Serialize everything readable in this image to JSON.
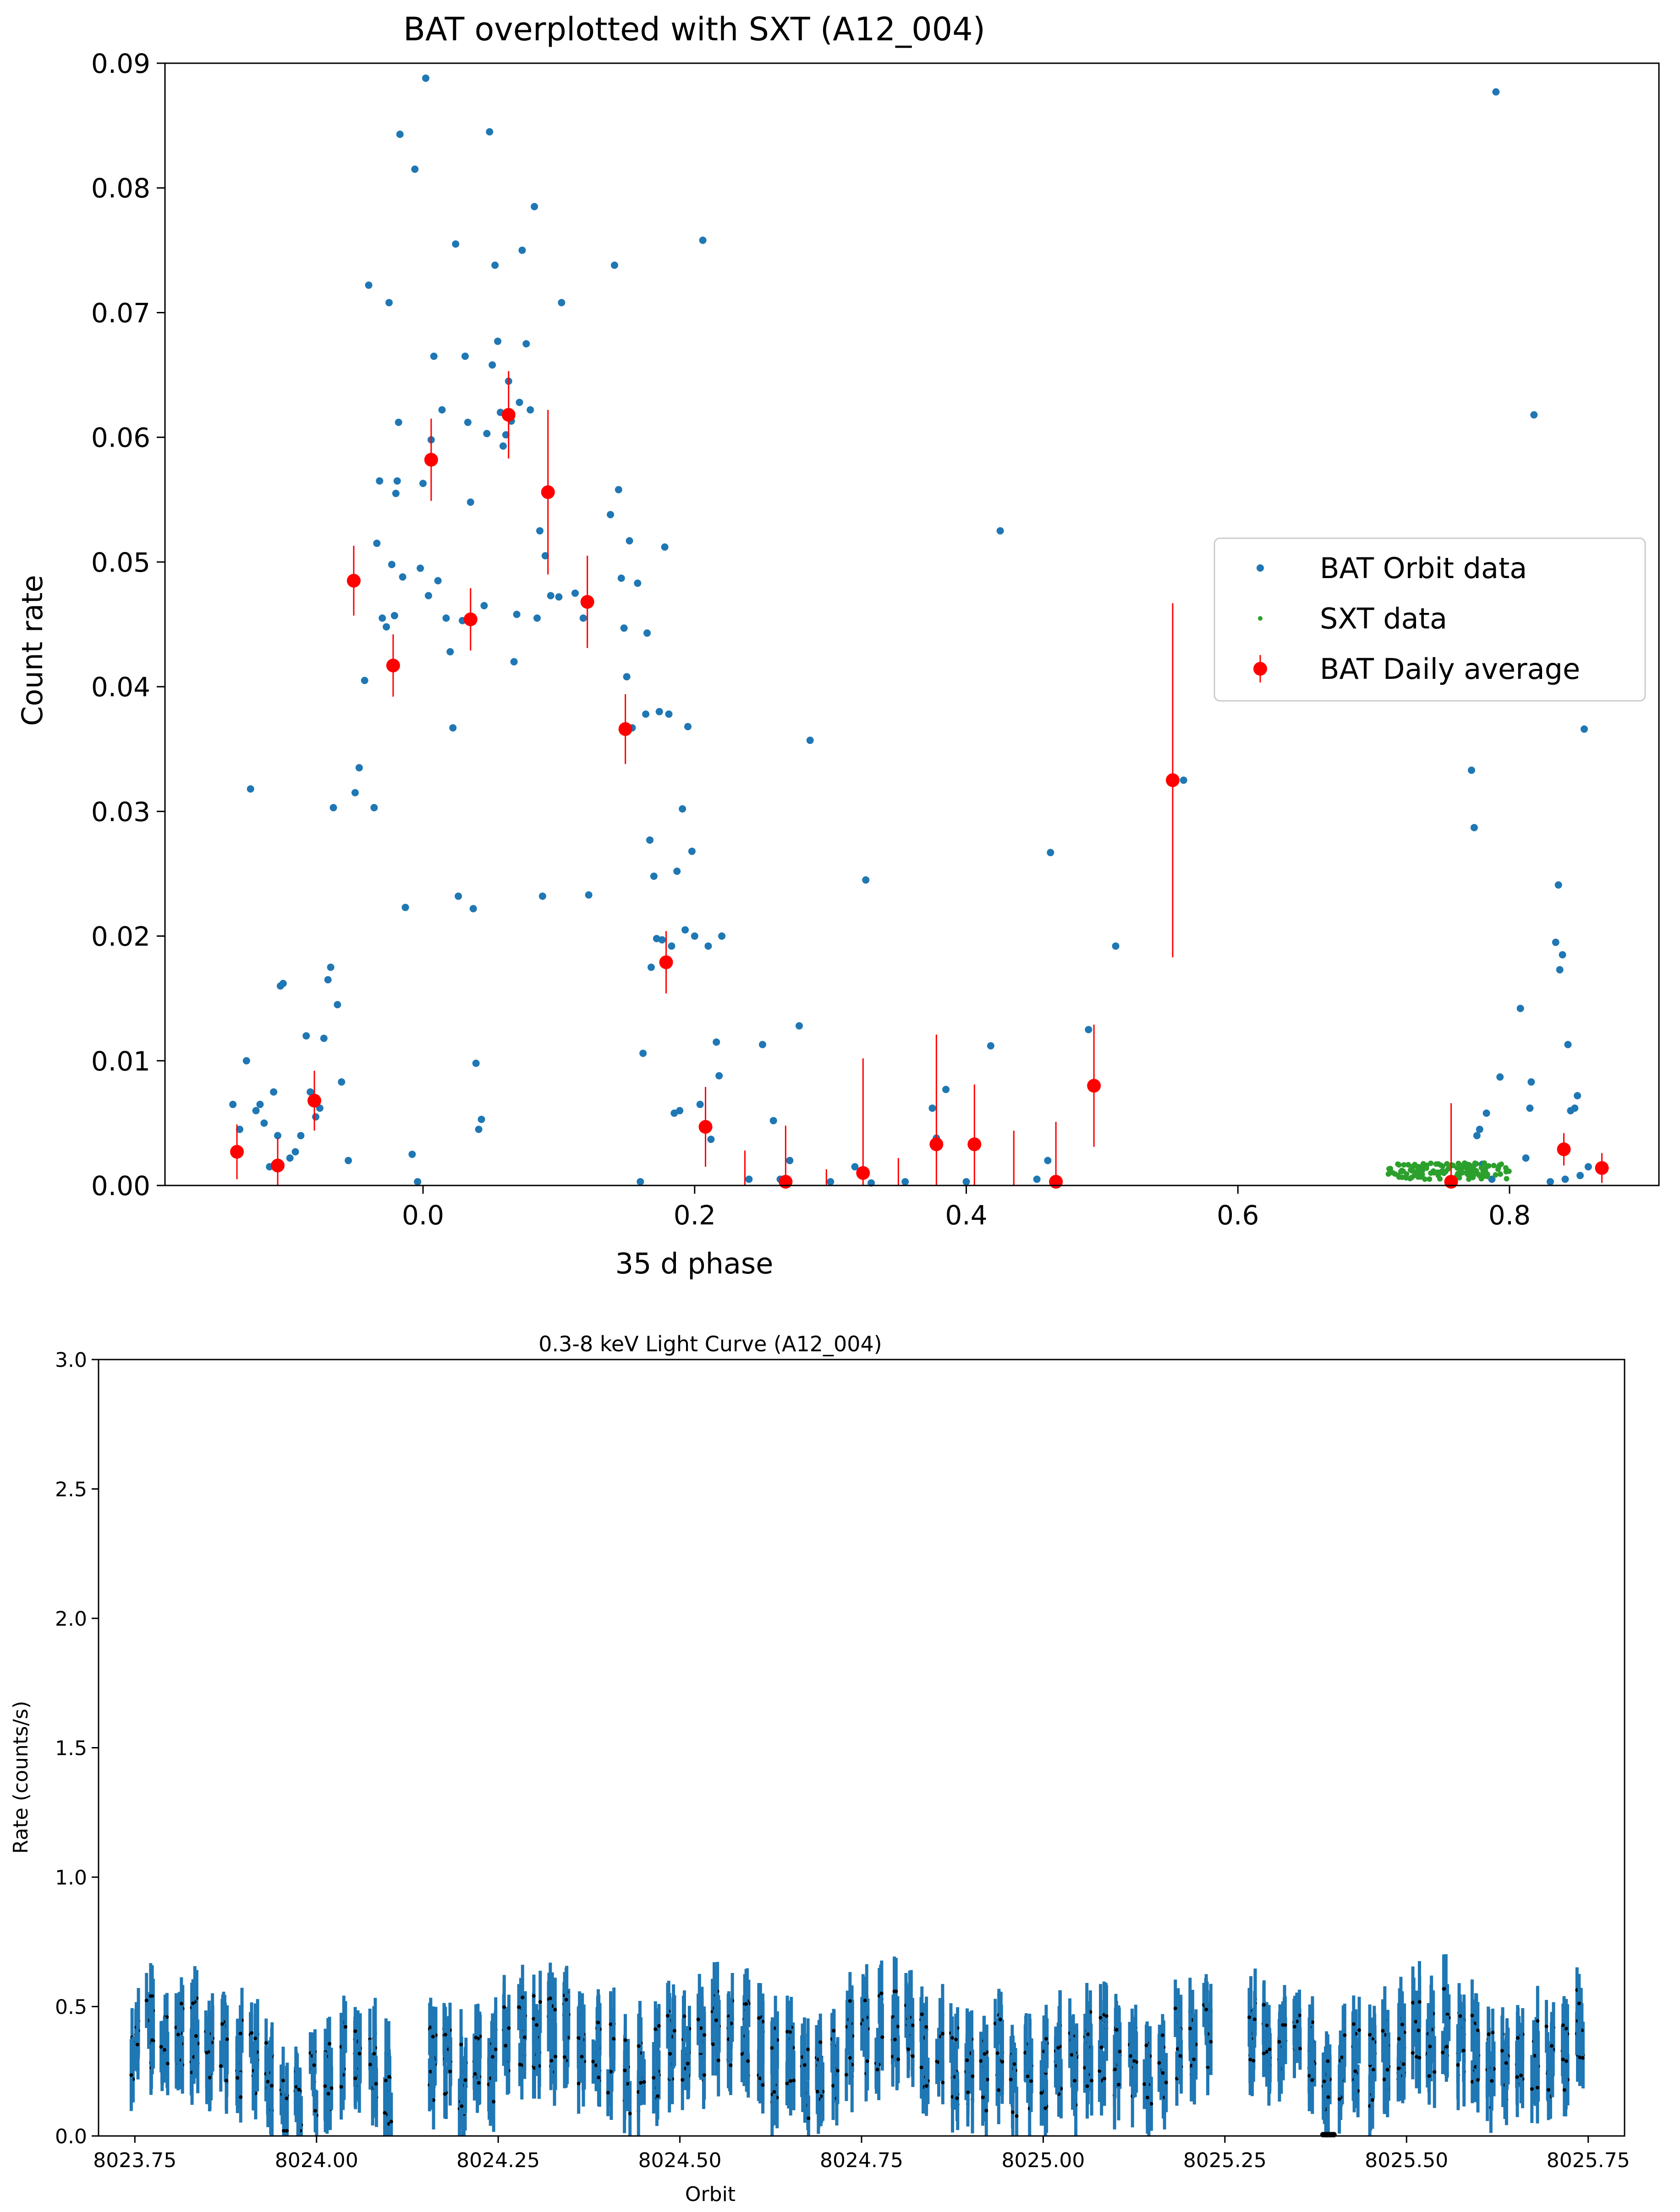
{
  "chart_data": [
    {
      "type": "scatter",
      "title": "BAT overplotted with SXT (A12_004)",
      "xlabel": "35 d phase",
      "ylabel": "Count rate",
      "xlim": [
        -0.19,
        0.91
      ],
      "ylim": [
        0,
        0.09
      ],
      "xticks": [
        0.0,
        0.2,
        0.4,
        0.6,
        0.8
      ],
      "xtick_labels": [
        "0.0",
        "0.2",
        "0.4",
        "0.6",
        "0.8"
      ],
      "yticks": [
        0,
        0.01,
        0.02,
        0.03,
        0.04,
        0.05,
        0.06,
        0.07,
        0.08,
        0.09
      ],
      "ytick_labels": [
        "0.00",
        "0.01",
        "0.02",
        "0.03",
        "0.04",
        "0.05",
        "0.06",
        "0.07",
        "0.08",
        "0.09"
      ],
      "legend_position": "center-right",
      "legend": [
        "BAT Orbit data",
        "SXT data",
        "BAT Daily average"
      ],
      "series": [
        {
          "name": "BAT Orbit data",
          "color": "#1f77b4",
          "points": [
            [
              -0.14,
              0.0065
            ],
            [
              -0.135,
              0.0045
            ],
            [
              -0.13,
              0.01
            ],
            [
              -0.127,
              0.0318
            ],
            [
              -0.123,
              0.006
            ],
            [
              -0.12,
              0.0065
            ],
            [
              -0.117,
              0.005
            ],
            [
              -0.113,
              0.0015
            ],
            [
              -0.11,
              0.0075
            ],
            [
              -0.107,
              0.004
            ],
            [
              -0.105,
              0.016
            ],
            [
              -0.103,
              0.0162
            ],
            [
              -0.098,
              0.0022
            ],
            [
              -0.094,
              0.0027
            ],
            [
              -0.09,
              0.004
            ],
            [
              -0.086,
              0.012
            ],
            [
              -0.083,
              0.0075
            ],
            [
              -0.079,
              0.0055
            ],
            [
              -0.076,
              0.0062
            ],
            [
              -0.073,
              0.0118
            ],
            [
              -0.07,
              0.0165
            ],
            [
              -0.068,
              0.0175
            ],
            [
              -0.066,
              0.0303
            ],
            [
              -0.063,
              0.0145
            ],
            [
              -0.06,
              0.0083
            ],
            [
              -0.055,
              0.002
            ],
            [
              -0.05,
              0.0315
            ],
            [
              -0.047,
              0.0335
            ],
            [
              -0.043,
              0.0405
            ],
            [
              -0.04,
              0.0722
            ],
            [
              -0.036,
              0.0303
            ],
            [
              -0.034,
              0.0515
            ],
            [
              -0.032,
              0.0565
            ],
            [
              -0.03,
              0.0455
            ],
            [
              -0.027,
              0.0448
            ],
            [
              -0.025,
              0.0708
            ],
            [
              -0.023,
              0.0498
            ],
            [
              -0.021,
              0.0457
            ],
            [
              -0.02,
              0.0555
            ],
            [
              -0.019,
              0.0565
            ],
            [
              -0.018,
              0.0612
            ],
            [
              -0.017,
              0.0843
            ],
            [
              -0.015,
              0.0488
            ],
            [
              -0.013,
              0.0223
            ],
            [
              -0.008,
              0.0025
            ],
            [
              -0.006,
              0.0815
            ],
            [
              -0.004,
              0.0003
            ],
            [
              -0.002,
              0.0495
            ],
            [
              0.0,
              0.0563
            ],
            [
              0.002,
              0.0888
            ],
            [
              0.004,
              0.0473
            ],
            [
              0.006,
              0.0598
            ],
            [
              0.008,
              0.0665
            ],
            [
              0.011,
              0.0485
            ],
            [
              0.014,
              0.0622
            ],
            [
              0.017,
              0.0455
            ],
            [
              0.02,
              0.0428
            ],
            [
              0.022,
              0.0367
            ],
            [
              0.024,
              0.0755
            ],
            [
              0.026,
              0.0232
            ],
            [
              0.029,
              0.0453
            ],
            [
              0.031,
              0.0665
            ],
            [
              0.033,
              0.0612
            ],
            [
              0.035,
              0.0548
            ],
            [
              0.037,
              0.0222
            ],
            [
              0.039,
              0.0098
            ],
            [
              0.041,
              0.0045
            ],
            [
              0.043,
              0.0053
            ],
            [
              0.045,
              0.0465
            ],
            [
              0.047,
              0.0603
            ],
            [
              0.049,
              0.0845
            ],
            [
              0.051,
              0.0658
            ],
            [
              0.053,
              0.0738
            ],
            [
              0.055,
              0.0677
            ],
            [
              0.057,
              0.062
            ],
            [
              0.059,
              0.0593
            ],
            [
              0.061,
              0.0602
            ],
            [
              0.063,
              0.0645
            ],
            [
              0.065,
              0.0613
            ],
            [
              0.067,
              0.042
            ],
            [
              0.069,
              0.0458
            ],
            [
              0.071,
              0.0628
            ],
            [
              0.073,
              0.075
            ],
            [
              0.076,
              0.0675
            ],
            [
              0.079,
              0.0622
            ],
            [
              0.082,
              0.0785
            ],
            [
              0.084,
              0.0455
            ],
            [
              0.086,
              0.0525
            ],
            [
              0.088,
              0.0232
            ],
            [
              0.09,
              0.0505
            ],
            [
              0.094,
              0.0473
            ],
            [
              0.1,
              0.0472
            ],
            [
              0.102,
              0.0708
            ],
            [
              0.112,
              0.0475
            ],
            [
              0.118,
              0.0455
            ],
            [
              0.122,
              0.0233
            ],
            [
              0.138,
              0.0538
            ],
            [
              0.141,
              0.0738
            ],
            [
              0.144,
              0.0558
            ],
            [
              0.146,
              0.0487
            ],
            [
              0.148,
              0.0447
            ],
            [
              0.15,
              0.0408
            ],
            [
              0.152,
              0.0517
            ],
            [
              0.154,
              0.0367
            ],
            [
              0.158,
              0.0483
            ],
            [
              0.16,
              0.0003
            ],
            [
              0.162,
              0.0106
            ],
            [
              0.164,
              0.0378
            ],
            [
              0.165,
              0.0443
            ],
            [
              0.167,
              0.0277
            ],
            [
              0.168,
              0.0175
            ],
            [
              0.17,
              0.0248
            ],
            [
              0.172,
              0.0198
            ],
            [
              0.174,
              0.038
            ],
            [
              0.176,
              0.0197
            ],
            [
              0.178,
              0.0512
            ],
            [
              0.181,
              0.0378
            ],
            [
              0.183,
              0.0192
            ],
            [
              0.185,
              0.0058
            ],
            [
              0.187,
              0.0252
            ],
            [
              0.189,
              0.006
            ],
            [
              0.191,
              0.0302
            ],
            [
              0.193,
              0.0205
            ],
            [
              0.195,
              0.0368
            ],
            [
              0.198,
              0.0268
            ],
            [
              0.2,
              0.02
            ],
            [
              0.204,
              0.0065
            ],
            [
              0.206,
              0.0758
            ],
            [
              0.21,
              0.0192
            ],
            [
              0.212,
              0.0037
            ],
            [
              0.216,
              0.0115
            ],
            [
              0.218,
              0.0088
            ],
            [
              0.22,
              0.02
            ],
            [
              0.24,
              0.0005
            ],
            [
              0.25,
              0.0113
            ],
            [
              0.258,
              0.0052
            ],
            [
              0.263,
              0.0005
            ],
            [
              0.27,
              0.002
            ],
            [
              0.277,
              0.0128
            ],
            [
              0.285,
              0.0357
            ],
            [
              0.3,
              0.0003
            ],
            [
              0.318,
              0.0015
            ],
            [
              0.326,
              0.0245
            ],
            [
              0.33,
              0.0002
            ],
            [
              0.355,
              0.0003
            ],
            [
              0.375,
              0.0062
            ],
            [
              0.378,
              0.0038
            ],
            [
              0.385,
              0.0077
            ],
            [
              0.4,
              0.0003
            ],
            [
              0.418,
              0.0112
            ],
            [
              0.425,
              0.0525
            ],
            [
              0.452,
              0.0005
            ],
            [
              0.46,
              0.002
            ],
            [
              0.462,
              0.0267
            ],
            [
              0.465,
              0.0005
            ],
            [
              0.49,
              0.0125
            ],
            [
              0.51,
              0.0192
            ],
            [
              0.56,
              0.0325
            ],
            [
              0.772,
              0.0333
            ],
            [
              0.774,
              0.0287
            ],
            [
              0.776,
              0.004
            ],
            [
              0.778,
              0.0045
            ],
            [
              0.78,
              0.0017
            ],
            [
              0.783,
              0.0058
            ],
            [
              0.787,
              0.0005
            ],
            [
              0.79,
              0.0877
            ],
            [
              0.793,
              0.0087
            ],
            [
              0.818,
              0.0618
            ],
            [
              0.815,
              0.0062
            ],
            [
              0.808,
              0.0142
            ],
            [
              0.812,
              0.0022
            ],
            [
              0.816,
              0.0083
            ],
            [
              0.83,
              0.0003
            ],
            [
              0.834,
              0.0195
            ],
            [
              0.836,
              0.0241
            ],
            [
              0.837,
              0.0173
            ],
            [
              0.839,
              0.0185
            ],
            [
              0.841,
              0.0005
            ],
            [
              0.843,
              0.0113
            ],
            [
              0.845,
              0.006
            ],
            [
              0.848,
              0.0062
            ],
            [
              0.85,
              0.0072
            ],
            [
              0.852,
              0.0008
            ],
            [
              0.855,
              0.0366
            ],
            [
              0.858,
              0.0015
            ]
          ]
        },
        {
          "name": "SXT data",
          "color": "#2ca02c",
          "x_range": [
            0.71,
            0.8
          ],
          "y_range": [
            0.0005,
            0.0018
          ]
        },
        {
          "name": "BAT Daily average",
          "color": "#ff0000",
          "points": [
            [
              -0.137,
              0.0027,
              0.0022
            ],
            [
              -0.107,
              0.0016,
              0.0022
            ],
            [
              -0.08,
              0.0068,
              0.0024
            ],
            [
              -0.051,
              0.0485,
              0.0028
            ],
            [
              -0.022,
              0.0417,
              0.0025
            ],
            [
              0.006,
              0.0582,
              0.0033
            ],
            [
              0.035,
              0.0454,
              0.0025
            ],
            [
              0.063,
              0.0618,
              0.0035
            ],
            [
              0.092,
              0.0556,
              0.0066
            ],
            [
              0.121,
              0.0468,
              0.0037
            ],
            [
              0.149,
              0.0366,
              0.0028
            ],
            [
              0.179,
              0.0179,
              0.0025
            ],
            [
              0.208,
              0.0047,
              0.0032
            ],
            [
              0.267,
              0.0003,
              0.0045
            ],
            [
              0.324,
              0.001,
              0.0092
            ],
            [
              0.378,
              0.0033,
              0.0088
            ],
            [
              0.406,
              0.0033,
              0.0048
            ],
            [
              0.466,
              0.0003,
              0.0048
            ],
            [
              0.494,
              0.008,
              0.0049
            ],
            [
              0.552,
              0.0325,
              0.0142
            ],
            [
              0.757,
              0.0003,
              0.0063
            ],
            [
              0.84,
              0.0029,
              0.0013
            ],
            [
              0.868,
              0.0014,
              0.0012
            ]
          ],
          "errorbar_only": [
            [
              0.237,
              0.0014,
              0.0014
            ],
            [
              0.297,
              0.0004,
              0.0009
            ],
            [
              0.35,
              0.0011,
              0.0011
            ],
            [
              0.435,
              0.0022,
              0.0022
            ]
          ]
        }
      ]
    },
    {
      "type": "scatter",
      "title": "0.3-8 keV Light Curve (A12_004)",
      "xlabel": "Orbit",
      "ylabel": "Rate (counts/s)",
      "xlim": [
        8023.7,
        8025.8
      ],
      "ylim": [
        0,
        3.0
      ],
      "xticks": [
        8023.75,
        8024.0,
        8024.25,
        8024.5,
        8024.75,
        8025.0,
        8025.25,
        8025.5,
        8025.75
      ],
      "xtick_labels": [
        "8023.75",
        "8024.00",
        "8024.25",
        "8024.50",
        "8024.75",
        "8025.00",
        "8025.25",
        "8025.50",
        "8025.75"
      ],
      "yticks": [
        0,
        0.5,
        1.0,
        1.5,
        2.0,
        2.5,
        3.0
      ],
      "ytick_labels": [
        "0.0",
        "0.5",
        "1.0",
        "1.5",
        "2.0",
        "2.5",
        "3.0"
      ],
      "series": [
        {
          "name": "0.3-8 keV rate",
          "color": "#1f77b4",
          "marker_color": "#000000",
          "x_range": [
            8023.75,
            8025.75
          ],
          "typical_rate": 0.33,
          "typical_error": 0.1,
          "gaps": [
            [
              8024.1,
              8024.155
            ],
            [
              8025.245,
              8025.28
            ]
          ]
        }
      ]
    }
  ]
}
